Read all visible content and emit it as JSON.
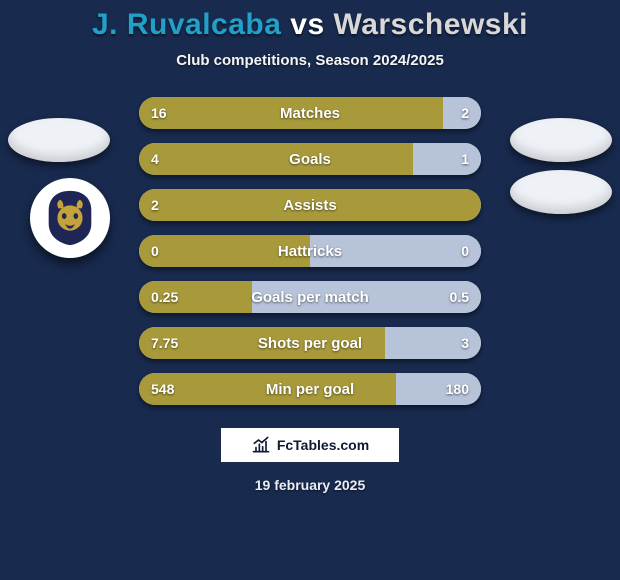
{
  "colors": {
    "background": "#182a4e",
    "title_p1": "#21a1c8",
    "title_vs": "#ffffff",
    "title_p2": "#d8d8d8",
    "bar_left": "#a89a3b",
    "bar_right": "#b6c3d9",
    "logo_oval": "#eef1f6",
    "badge_bg": "#1f2656",
    "badge_fg": "#c6a23b"
  },
  "title": {
    "p1": "J. Ruvalcaba",
    "vs": "vs",
    "p2": "Warschewski"
  },
  "subtitle": "Club competitions, Season 2024/2025",
  "brand": "FcTables.com",
  "date": "19 february 2025",
  "rows": [
    {
      "label": "Matches",
      "left": "16",
      "right": "2",
      "left_pct": 89,
      "right_pct": 11
    },
    {
      "label": "Goals",
      "left": "4",
      "right": "1",
      "left_pct": 80,
      "right_pct": 20
    },
    {
      "label": "Assists",
      "left": "2",
      "right": "",
      "left_pct": 100,
      "right_pct": 0
    },
    {
      "label": "Hattricks",
      "left": "0",
      "right": "0",
      "left_pct": 50,
      "right_pct": 50
    },
    {
      "label": "Goals per match",
      "left": "0.25",
      "right": "0.5",
      "left_pct": 33,
      "right_pct": 67
    },
    {
      "label": "Shots per goal",
      "left": "7.75",
      "right": "3",
      "left_pct": 72,
      "right_pct": 28
    },
    {
      "label": "Min per goal",
      "left": "548",
      "right": "180",
      "left_pct": 75,
      "right_pct": 25
    }
  ]
}
